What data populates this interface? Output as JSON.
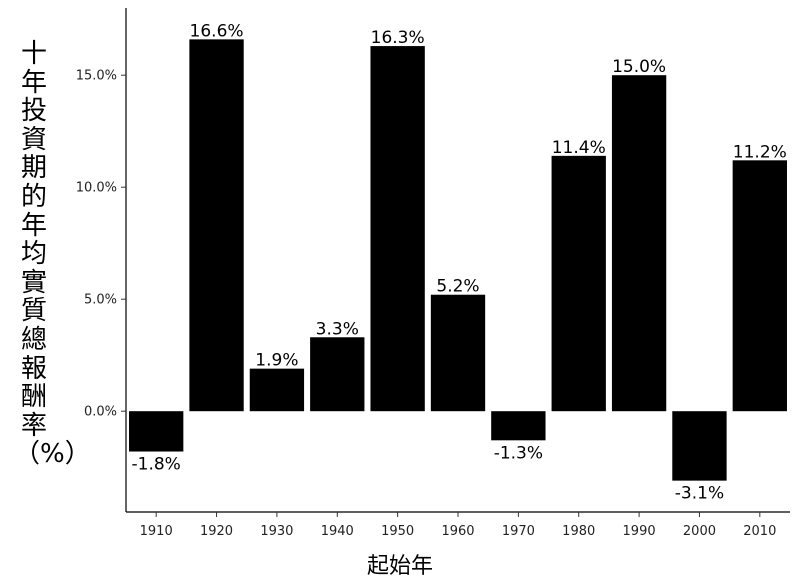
{
  "chart_data": {
    "type": "bar",
    "categories": [
      "1910",
      "1920",
      "1930",
      "1940",
      "1950",
      "1960",
      "1970",
      "1980",
      "1990",
      "2000",
      "2010"
    ],
    "values": [
      -1.8,
      16.6,
      1.9,
      3.3,
      16.3,
      5.2,
      -1.3,
      11.4,
      15.0,
      -3.1,
      11.2
    ],
    "value_labels": [
      "-1.8%",
      "16.6%",
      "1.9%",
      "3.3%",
      "16.3%",
      "5.2%",
      "-1.3%",
      "11.4%",
      "15.0%",
      "-3.1%",
      "11.2%"
    ],
    "yticks": [
      0,
      5,
      10,
      15
    ],
    "ytick_labels": [
      "0.0%",
      "5.0%",
      "10.0%",
      "15.0%"
    ],
    "ylim": [
      -4.5,
      18
    ],
    "xlabel": "起始年",
    "ylabel": "十年投資期的年均實質總報酬率（%）",
    "grid": false,
    "bar_color": "#000000"
  }
}
